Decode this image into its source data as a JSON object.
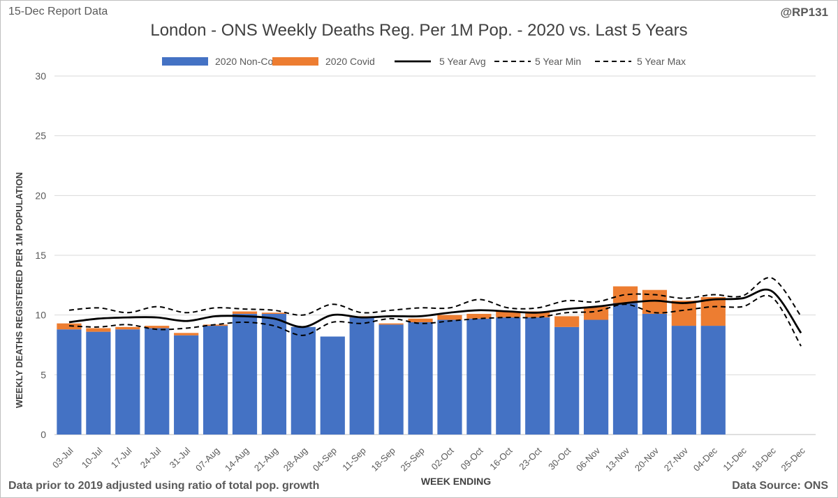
{
  "header": {
    "report_label": "15-Dec Report Data",
    "handle": "@RP131"
  },
  "footer": {
    "note": "Data prior to 2019 adjusted using ratio of total pop. growth",
    "source": "Data Source: ONS"
  },
  "chart_data": {
    "type": "bar",
    "stacked": true,
    "title": "London - ONS Weekly Deaths Reg. Per 1M Pop. - 2020 vs. Last 5 Years",
    "xlabel": "WEEK ENDING",
    "ylabel": "WEEKLY DEATHS REGISTERED PER 1M POPULATION",
    "ylim": [
      0,
      30
    ],
    "yticks": [
      0,
      5,
      10,
      15,
      20,
      25,
      30
    ],
    "grid": true,
    "legend_position": "top",
    "categories": [
      "03-Jul",
      "10-Jul",
      "17-Jul",
      "24-Jul",
      "31-Jul",
      "07-Aug",
      "14-Aug",
      "21-Aug",
      "28-Aug",
      "04-Sep",
      "11-Sep",
      "18-Sep",
      "25-Sep",
      "02-Oct",
      "09-Oct",
      "16-Oct",
      "23-Oct",
      "30-Oct",
      "06-Nov",
      "13-Nov",
      "20-Nov",
      "27-Nov",
      "04-Dec",
      "11-Dec",
      "18-Dec",
      "25-Dec"
    ],
    "series": [
      {
        "name": "2020 Non-Covid",
        "kind": "bar",
        "color": "#4472c4",
        "values": [
          8.8,
          8.6,
          8.8,
          8.9,
          8.3,
          9.1,
          10.1,
          10.1,
          9.0,
          8.2,
          9.8,
          9.2,
          9.4,
          9.6,
          9.7,
          9.8,
          9.8,
          9.0,
          9.6,
          11.0,
          10.1,
          9.1,
          9.1,
          null,
          null,
          null
        ]
      },
      {
        "name": "2020 Covid",
        "kind": "bar",
        "color": "#ed7d31",
        "values": [
          0.5,
          0.3,
          0.2,
          0.2,
          0.2,
          0.1,
          0.2,
          0.1,
          0.0,
          0.0,
          0.1,
          0.1,
          0.3,
          0.4,
          0.4,
          0.5,
          0.5,
          0.9,
          1.1,
          1.4,
          2.0,
          2.1,
          2.4,
          null,
          null,
          null
        ]
      },
      {
        "name": "5 Year Avg",
        "kind": "line",
        "style": "solid",
        "color": "#000000",
        "values": [
          9.4,
          9.7,
          9.8,
          9.8,
          9.5,
          9.9,
          9.9,
          9.7,
          9.0,
          10.0,
          9.8,
          9.9,
          9.9,
          10.2,
          10.4,
          10.3,
          10.2,
          10.5,
          10.7,
          11.0,
          11.2,
          11.0,
          11.3,
          11.4,
          12.0,
          8.5
        ]
      },
      {
        "name": "5 Year Min",
        "kind": "line",
        "style": "dashed",
        "color": "#000000",
        "values": [
          9.1,
          9.0,
          9.2,
          8.8,
          8.9,
          9.2,
          9.4,
          9.1,
          8.3,
          9.4,
          9.3,
          9.7,
          9.3,
          9.5,
          9.7,
          9.8,
          9.8,
          10.2,
          10.3,
          10.9,
          10.2,
          10.4,
          10.7,
          10.7,
          11.5,
          7.4
        ]
      },
      {
        "name": "5 Year Max",
        "kind": "line",
        "style": "dashed",
        "color": "#000000",
        "values": [
          10.4,
          10.6,
          10.2,
          10.7,
          10.2,
          10.6,
          10.5,
          10.4,
          10.0,
          10.9,
          10.2,
          10.4,
          10.6,
          10.6,
          11.3,
          10.6,
          10.6,
          11.2,
          11.1,
          11.7,
          11.7,
          11.4,
          11.7,
          11.6,
          13.1,
          9.9
        ]
      }
    ]
  }
}
